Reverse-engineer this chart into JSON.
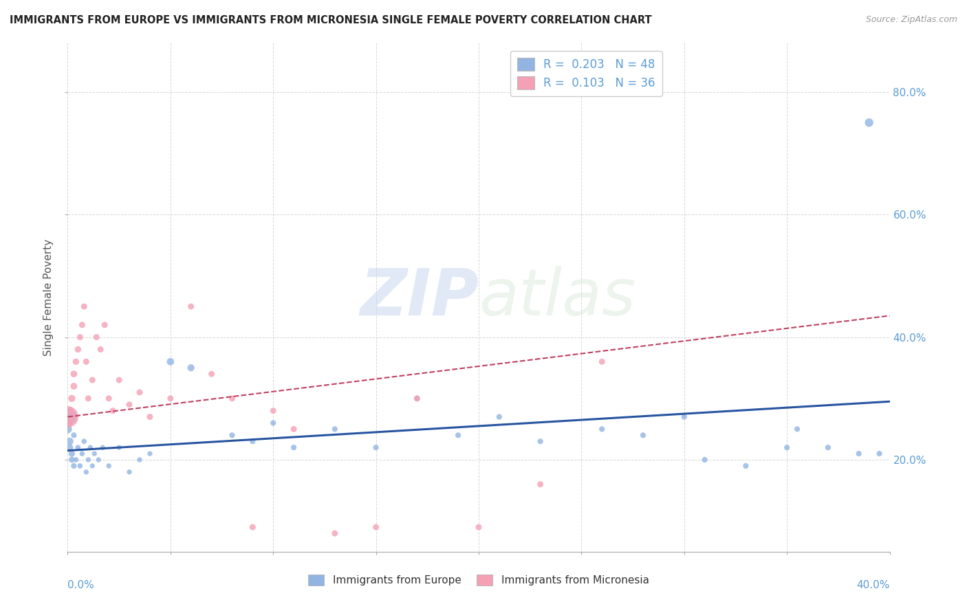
{
  "title": "IMMIGRANTS FROM EUROPE VS IMMIGRANTS FROM MICRONESIA SINGLE FEMALE POVERTY CORRELATION CHART",
  "source": "Source: ZipAtlas.com",
  "ylabel": "Single Female Poverty",
  "color_europe": "#92b4e3",
  "color_micronesia": "#f4a0b5",
  "color_europe_line": "#2855a0",
  "color_micronesia_line": "#c04060",
  "watermark_zip": "ZIP",
  "watermark_atlas": "atlas",
  "xlim": [
    0.0,
    0.4
  ],
  "ylim": [
    0.05,
    0.88
  ],
  "right_yticks": [
    0.2,
    0.4,
    0.6,
    0.8
  ],
  "right_yticklabels": [
    "20.0%",
    "40.0%",
    "60.0%",
    "80.0%"
  ],
  "europe_x": [
    0.0,
    0.0,
    0.001,
    0.001,
    0.002,
    0.002,
    0.003,
    0.003,
    0.004,
    0.005,
    0.006,
    0.007,
    0.008,
    0.009,
    0.01,
    0.011,
    0.012,
    0.013,
    0.015,
    0.017,
    0.02,
    0.025,
    0.03,
    0.035,
    0.04,
    0.05,
    0.06,
    0.08,
    0.09,
    0.1,
    0.11,
    0.13,
    0.15,
    0.17,
    0.19,
    0.21,
    0.23,
    0.26,
    0.28,
    0.3,
    0.31,
    0.33,
    0.35,
    0.355,
    0.37,
    0.385,
    0.39,
    0.395
  ],
  "europe_y": [
    0.27,
    0.25,
    0.23,
    0.22,
    0.21,
    0.2,
    0.19,
    0.24,
    0.2,
    0.22,
    0.19,
    0.21,
    0.23,
    0.18,
    0.2,
    0.22,
    0.19,
    0.21,
    0.2,
    0.22,
    0.19,
    0.22,
    0.18,
    0.2,
    0.21,
    0.36,
    0.35,
    0.24,
    0.23,
    0.26,
    0.22,
    0.25,
    0.22,
    0.3,
    0.24,
    0.27,
    0.23,
    0.25,
    0.24,
    0.27,
    0.2,
    0.19,
    0.22,
    0.25,
    0.22,
    0.21,
    0.75,
    0.21
  ],
  "europe_sizes": [
    350,
    80,
    60,
    50,
    45,
    40,
    35,
    35,
    30,
    30,
    30,
    30,
    30,
    28,
    28,
    28,
    28,
    28,
    28,
    28,
    28,
    28,
    28,
    28,
    28,
    60,
    55,
    35,
    35,
    35,
    35,
    35,
    35,
    35,
    35,
    35,
    35,
    35,
    35,
    35,
    35,
    35,
    35,
    35,
    35,
    35,
    80,
    35
  ],
  "micronesia_x": [
    0.0,
    0.0,
    0.001,
    0.002,
    0.003,
    0.003,
    0.004,
    0.005,
    0.006,
    0.007,
    0.008,
    0.009,
    0.01,
    0.012,
    0.014,
    0.016,
    0.018,
    0.02,
    0.022,
    0.025,
    0.03,
    0.035,
    0.04,
    0.05,
    0.06,
    0.07,
    0.08,
    0.09,
    0.1,
    0.11,
    0.13,
    0.15,
    0.17,
    0.2,
    0.23,
    0.26
  ],
  "micronesia_y": [
    0.27,
    0.26,
    0.28,
    0.3,
    0.32,
    0.34,
    0.36,
    0.38,
    0.4,
    0.42,
    0.45,
    0.36,
    0.3,
    0.33,
    0.4,
    0.38,
    0.42,
    0.3,
    0.28,
    0.33,
    0.29,
    0.31,
    0.27,
    0.3,
    0.45,
    0.34,
    0.3,
    0.09,
    0.28,
    0.25,
    0.08,
    0.09,
    0.3,
    0.09,
    0.16,
    0.36
  ],
  "micronesia_sizes": [
    500,
    100,
    60,
    55,
    50,
    50,
    45,
    45,
    42,
    42,
    42,
    42,
    42,
    42,
    42,
    42,
    42,
    42,
    42,
    42,
    42,
    42,
    42,
    42,
    42,
    42,
    42,
    42,
    42,
    42,
    42,
    42,
    42,
    42,
    42,
    42
  ],
  "europe_trend_x0": 0.0,
  "europe_trend_y0": 0.215,
  "europe_trend_x1": 0.4,
  "europe_trend_y1": 0.295,
  "micronesia_trend_x0": 0.0,
  "micronesia_trend_y0": 0.27,
  "micronesia_trend_x1": 0.4,
  "micronesia_trend_y1": 0.435
}
